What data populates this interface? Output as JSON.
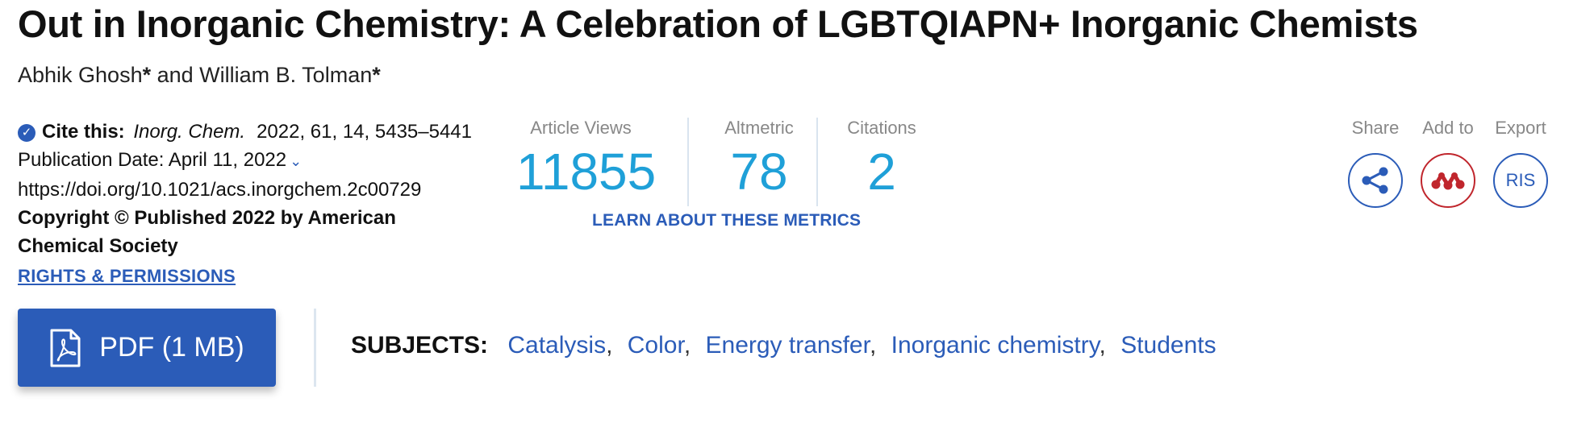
{
  "article": {
    "title": "Out in Inorganic Chemistry: A Celebration of LGBTQIAPN+ Inorganic Chemists",
    "authors": [
      {
        "name": "Abhik Ghosh",
        "mark": "*"
      },
      {
        "name": "William B. Tolman",
        "mark": "*"
      }
    ],
    "author_joiner": " and "
  },
  "meta": {
    "cite_label": "Cite this:",
    "journal": "Inorg. Chem.",
    "citation": "2022, 61, 14, 5435–5441",
    "publication_date": "Publication Date: April 11, 2022",
    "doi": "https://doi.org/10.1021/acs.inorgchem.2c00729",
    "copyright": "Copyright © Published 2022 by American Chemical Society",
    "rights_link": "RIGHTS & PERMISSIONS"
  },
  "metrics": {
    "items": [
      {
        "label": "Article Views",
        "value": "11855"
      },
      {
        "label": "Altmetric",
        "value": "78"
      },
      {
        "label": "Citations",
        "value": "2"
      }
    ],
    "learn_link": "LEARN ABOUT THESE METRICS"
  },
  "actions": {
    "share_label": "Share",
    "add_label": "Add to",
    "export_label": "Export",
    "export_button": "RIS"
  },
  "pdf": {
    "label": "PDF (1 MB)"
  },
  "subjects": {
    "heading": "SUBJECTS:",
    "items": [
      "Catalysis",
      "Color",
      "Energy transfer",
      "Inorganic chemistry",
      "Students"
    ],
    "separator": ","
  },
  "colors": {
    "link_blue": "#2b5cb8",
    "metric_blue": "#1fa0d8",
    "mendeley_red": "#c0262d",
    "muted_gray": "#888888"
  },
  "icons": {
    "cite": "check-circle-icon",
    "date": "chevron-down-icon",
    "share": "share-icon",
    "add_to": "mendeley-icon",
    "pdf": "pdf-file-icon"
  }
}
